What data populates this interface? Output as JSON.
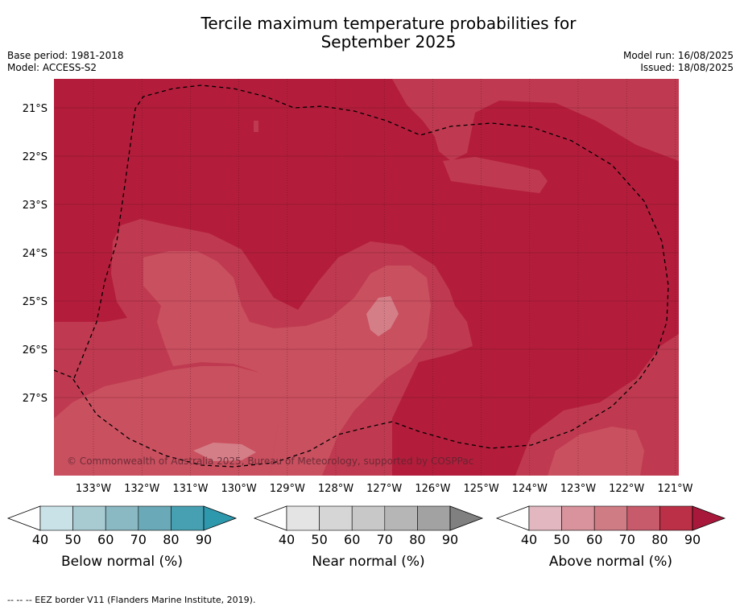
{
  "title_line1": "Tercile maximum temperature probabilities for",
  "title_line2": "September 2025",
  "base_period": "Base period: 1981-2018",
  "model": "Model: ACCESS-S2",
  "model_run": "Model run: 16/08/2025",
  "issued": "Issued: 18/08/2025",
  "copyright": "© Commonwealth of Australia 2025, Bureau of Meteorology, supported by COSPPac",
  "footnote": "--  --  -- EEZ border V11 (Flanders Marine Institute, 2019).",
  "lat_ticks": [
    "21°S",
    "22°S",
    "23°S",
    "24°S",
    "25°S",
    "26°S",
    "27°S"
  ],
  "lon_ticks": [
    "133°W",
    "132°W",
    "131°W",
    "130°W",
    "129°W",
    "128°W",
    "127°W",
    "126°W",
    "125°W",
    "124°W",
    "123°W",
    "122°W",
    "121°W"
  ],
  "colors": {
    "above_90": "#b31d3b",
    "above_80": "#bf3a50",
    "above_70": "#c9505f",
    "above_60": "#d47f88",
    "eez_line": "#000000"
  },
  "colorbars": [
    {
      "label": "Below normal (%)",
      "ticks": [
        "40",
        "50",
        "60",
        "70",
        "80",
        "90"
      ],
      "colors": [
        "#ffffff",
        "#c9e2e8",
        "#a8cbd2",
        "#8ab8c3",
        "#6aa9b7",
        "#46a0b2",
        "#2e98ad"
      ]
    },
    {
      "label": "Near normal (%)",
      "ticks": [
        "40",
        "50",
        "60",
        "70",
        "80",
        "90"
      ],
      "colors": [
        "#ffffff",
        "#e4e4e4",
        "#d6d6d6",
        "#c8c8c8",
        "#b6b6b6",
        "#a2a2a2",
        "#808080"
      ]
    },
    {
      "label": "Above normal (%)",
      "ticks": [
        "40",
        "50",
        "60",
        "70",
        "80",
        "90"
      ],
      "colors": [
        "#ffffff",
        "#e2b7bf",
        "#d8939c",
        "#d07c85",
        "#c75a6b",
        "#bb3047",
        "#a8183a"
      ]
    }
  ]
}
